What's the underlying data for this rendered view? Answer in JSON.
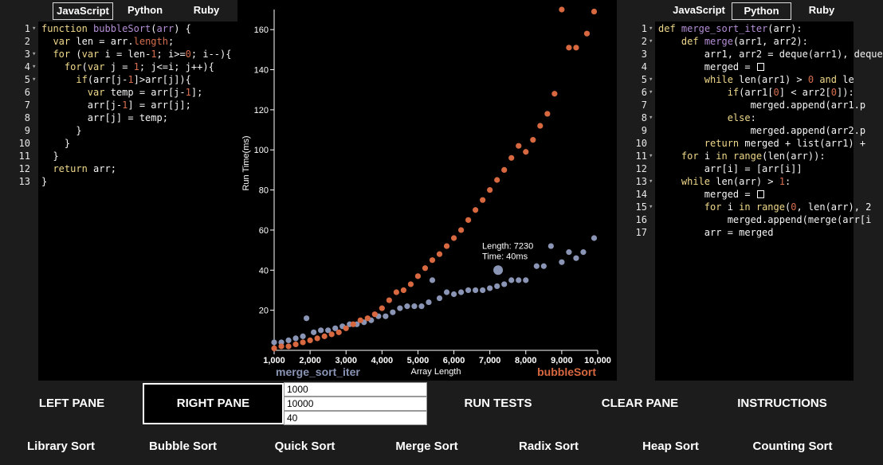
{
  "left_pane": {
    "tabs": [
      "JavaScript",
      "Python",
      "Ruby"
    ],
    "active_tab": 0,
    "lines": [
      {
        "n": "1",
        "fold": true,
        "html": "<span class='k'>function</span> <span class='f'>bubbleSort</span>(<span class='f'>arr</span>) {"
      },
      {
        "n": "2",
        "fold": false,
        "html": "  <span class='k'>var</span> len = arr.<span class='n'>length</span>;"
      },
      {
        "n": "3",
        "fold": true,
        "html": "  <span class='k'>for</span> (<span class='k'>var</span> i = len-<span class='n'>1</span>; i>=<span class='n'>0</span>; i--){"
      },
      {
        "n": "4",
        "fold": true,
        "html": "    <span class='k'>for</span>(<span class='k'>var</span> j = <span class='n'>1</span>; j<=i; j++){"
      },
      {
        "n": "5",
        "fold": true,
        "html": "      <span class='k'>if</span>(arr[j-<span class='n'>1</span>]>arr[j]){"
      },
      {
        "n": "6",
        "fold": false,
        "html": "        <span class='k'>var</span> temp = arr[j-<span class='n'>1</span>];"
      },
      {
        "n": "7",
        "fold": false,
        "html": "        arr[j-<span class='n'>1</span>] = arr[j];"
      },
      {
        "n": "8",
        "fold": false,
        "html": "        arr[j] = temp;"
      },
      {
        "n": "9",
        "fold": false,
        "html": "      }"
      },
      {
        "n": "10",
        "fold": false,
        "html": "    }"
      },
      {
        "n": "11",
        "fold": false,
        "html": "  }"
      },
      {
        "n": "12",
        "fold": false,
        "html": "  <span class='k'>return</span> arr;"
      },
      {
        "n": "13",
        "fold": false,
        "html": "}"
      }
    ]
  },
  "right_pane": {
    "tabs": [
      "JavaScript",
      "Python",
      "Ruby"
    ],
    "active_tab": 1,
    "lines": [
      {
        "n": "1",
        "fold": true,
        "html": "<span class='k'>def</span> <span class='f'>merge_sort_iter</span>(arr):"
      },
      {
        "n": "2",
        "fold": true,
        "html": "    <span class='k'>def</span> <span class='f'>merge</span>(arr1, arr2):"
      },
      {
        "n": "3",
        "fold": false,
        "html": "        arr1, arr2 = deque(arr1), deque"
      },
      {
        "n": "4",
        "fold": false,
        "html": "        merged = <span class='bx'></span>"
      },
      {
        "n": "5",
        "fold": true,
        "html": "        <span class='k'>while</span> len(arr1) > <span class='n'>0</span> <span class='k'>and</span> le"
      },
      {
        "n": "6",
        "fold": true,
        "html": "            <span class='k'>if</span>(arr1[<span class='n'>0</span>] < arr2[<span class='n'>0</span>]):"
      },
      {
        "n": "7",
        "fold": false,
        "html": "                merged.append(arr1.p"
      },
      {
        "n": "8",
        "fold": true,
        "html": "            <span class='k'>else</span>:"
      },
      {
        "n": "9",
        "fold": false,
        "html": "                merged.append(arr2.p"
      },
      {
        "n": "10",
        "fold": false,
        "html": "        <span class='k'>return</span> merged + list(arr1) +"
      },
      {
        "n": "11",
        "fold": true,
        "html": "    <span class='k'>for</span> i <span class='k'>in</span> <span class='k'>range</span>(len(arr)):"
      },
      {
        "n": "12",
        "fold": false,
        "html": "        arr[i] = [arr[i]]"
      },
      {
        "n": "13",
        "fold": true,
        "html": "    <span class='k'>while</span> len(arr) > <span class='n'>1</span>:"
      },
      {
        "n": "14",
        "fold": false,
        "html": "        merged = <span class='bx'></span>"
      },
      {
        "n": "15",
        "fold": true,
        "html": "        <span class='k'>for</span> i <span class='k'>in</span> <span class='k'>range</span>(<span class='n'>0</span>, len(arr), 2"
      },
      {
        "n": "16",
        "fold": false,
        "html": "            merged.append(merge(arr[i"
      },
      {
        "n": "17",
        "fold": false,
        "html": "        arr = merged"
      }
    ]
  },
  "chart_data": {
    "type": "scatter",
    "xlabel": "Array Length",
    "ylabel": "Run Time(ms)",
    "xlim": [
      1000,
      10000
    ],
    "ylim": [
      0,
      170
    ],
    "x_ticks": [
      "1,000",
      "2,000",
      "3,000",
      "4,000",
      "5,000",
      "6,000",
      "7,000",
      "8,000",
      "9,000",
      "10,000"
    ],
    "y_ticks": [
      20,
      40,
      60,
      80,
      100,
      120,
      140,
      160
    ],
    "series": [
      {
        "name": "merge_sort_iter",
        "color": "#8a94b4",
        "points": [
          [
            1000,
            4
          ],
          [
            1200,
            4
          ],
          [
            1400,
            5
          ],
          [
            1600,
            6
          ],
          [
            1800,
            7
          ],
          [
            1900,
            16
          ],
          [
            2100,
            9
          ],
          [
            2300,
            10
          ],
          [
            2500,
            10
          ],
          [
            2700,
            11
          ],
          [
            2900,
            12
          ],
          [
            3100,
            13
          ],
          [
            3300,
            13
          ],
          [
            3500,
            14
          ],
          [
            3700,
            15
          ],
          [
            3900,
            17
          ],
          [
            4100,
            17
          ],
          [
            4300,
            19
          ],
          [
            4500,
            21
          ],
          [
            4700,
            22
          ],
          [
            4900,
            22
          ],
          [
            5100,
            22
          ],
          [
            5300,
            24
          ],
          [
            5400,
            35
          ],
          [
            5600,
            26
          ],
          [
            5800,
            29
          ],
          [
            6000,
            28
          ],
          [
            6200,
            29
          ],
          [
            6400,
            30
          ],
          [
            6600,
            30
          ],
          [
            6800,
            30
          ],
          [
            7000,
            31
          ],
          [
            7200,
            32
          ],
          [
            7230,
            40
          ],
          [
            7400,
            33
          ],
          [
            7600,
            35
          ],
          [
            7800,
            35
          ],
          [
            8000,
            35
          ],
          [
            8300,
            42
          ],
          [
            8500,
            42
          ],
          [
            8700,
            52
          ],
          [
            9000,
            44
          ],
          [
            9200,
            49
          ],
          [
            9400,
            46
          ],
          [
            9600,
            49
          ],
          [
            9900,
            56
          ]
        ]
      },
      {
        "name": "bubbleSort",
        "color": "#d8683f",
        "points": [
          [
            1000,
            1
          ],
          [
            1200,
            2
          ],
          [
            1400,
            2
          ],
          [
            1600,
            3
          ],
          [
            1800,
            4
          ],
          [
            2000,
            5
          ],
          [
            2200,
            6
          ],
          [
            2400,
            7
          ],
          [
            2600,
            8
          ],
          [
            2800,
            9
          ],
          [
            3000,
            11
          ],
          [
            3200,
            13
          ],
          [
            3400,
            15
          ],
          [
            3600,
            16
          ],
          [
            3800,
            18
          ],
          [
            4000,
            21
          ],
          [
            4200,
            25
          ],
          [
            4400,
            29
          ],
          [
            4600,
            30
          ],
          [
            4800,
            33
          ],
          [
            5000,
            37
          ],
          [
            5200,
            41
          ],
          [
            5400,
            45
          ],
          [
            5600,
            48
          ],
          [
            5800,
            52
          ],
          [
            6000,
            56
          ],
          [
            6200,
            60
          ],
          [
            6400,
            65
          ],
          [
            6600,
            70
          ],
          [
            6800,
            75
          ],
          [
            7000,
            80
          ],
          [
            7200,
            85
          ],
          [
            7400,
            90
          ],
          [
            7600,
            96
          ],
          [
            7800,
            102
          ],
          [
            8000,
            99
          ],
          [
            8200,
            105
          ],
          [
            8400,
            112
          ],
          [
            8600,
            118
          ],
          [
            8800,
            128
          ],
          [
            9000,
            170
          ],
          [
            9200,
            151
          ],
          [
            9400,
            151
          ],
          [
            9700,
            158
          ],
          [
            9900,
            169
          ]
        ]
      }
    ],
    "highlight": {
      "x": 7230,
      "y": 40,
      "label_length": "Length: 7230",
      "label_time": "Time: 40ms"
    }
  },
  "controls": {
    "left_pane": "LEFT PANE",
    "right_pane": "RIGHT PANE",
    "inputs": [
      "1000",
      "10000",
      "40"
    ],
    "run_tests": "RUN TESTS",
    "clear_pane": "CLEAR PANE",
    "instructions": "INSTRUCTIONS"
  },
  "sorts": [
    "Library Sort",
    "Bubble Sort",
    "Quick Sort",
    "Merge Sort",
    "Radix Sort",
    "Heap Sort",
    "Counting Sort"
  ]
}
